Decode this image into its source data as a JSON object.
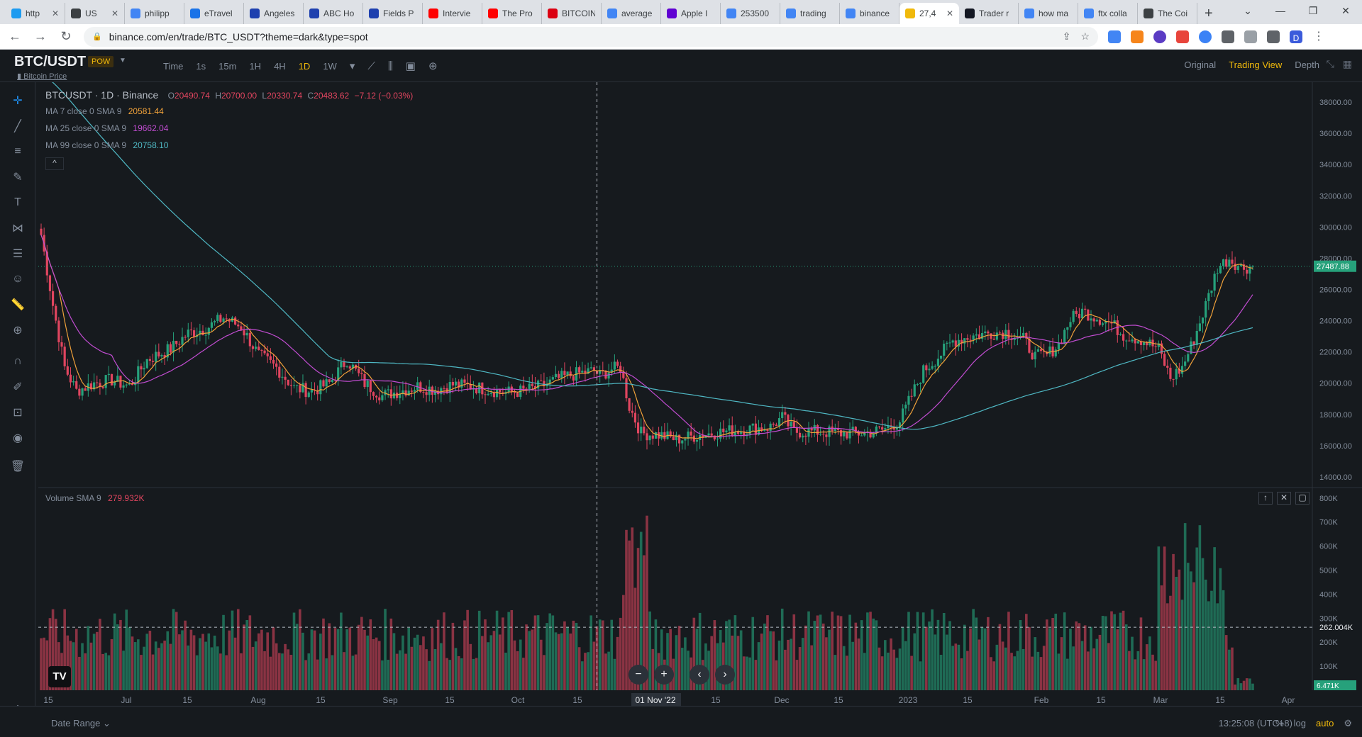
{
  "browser": {
    "tabs": [
      {
        "label": "http",
        "icon": "twitter-icon",
        "color": "#1d9bf0"
      },
      {
        "label": "US",
        "icon": "globe-icon",
        "color": "#3c4043"
      },
      {
        "label": "philipp",
        "icon": "google-icon",
        "color": "#4285f4"
      },
      {
        "label": "eTravel",
        "icon": "plane-icon",
        "color": "#1a73e8"
      },
      {
        "label": "Angeles",
        "icon": "t-icon",
        "color": "#1e40af"
      },
      {
        "label": "ABC Ho",
        "icon": "t-icon",
        "color": "#1e40af"
      },
      {
        "label": "Fields P",
        "icon": "t-icon",
        "color": "#1e40af"
      },
      {
        "label": "Intervie",
        "icon": "youtube-icon",
        "color": "#ff0000"
      },
      {
        "label": "The Pro",
        "icon": "youtube-icon",
        "color": "#ff0000"
      },
      {
        "label": "BITCOIN",
        "icon": "hsbc-icon",
        "color": "#db0011"
      },
      {
        "label": "average",
        "icon": "google-icon",
        "color": "#4285f4"
      },
      {
        "label": "Apple I",
        "icon": "yahoo-icon",
        "color": "#6001d2"
      },
      {
        "label": "253500",
        "icon": "google-icon",
        "color": "#4285f4"
      },
      {
        "label": "trading",
        "icon": "google-icon",
        "color": "#4285f4"
      },
      {
        "label": "binance",
        "icon": "google-icon",
        "color": "#4285f4"
      },
      {
        "label": "27,4",
        "icon": "binance-icon",
        "color": "#f0b90b",
        "active": true
      },
      {
        "label": "Trader r",
        "icon": "tradingview-icon",
        "color": "#131722"
      },
      {
        "label": "how ma",
        "icon": "google-icon",
        "color": "#4285f4"
      },
      {
        "label": "ftx colla",
        "icon": "google-icon",
        "color": "#4285f4"
      },
      {
        "label": "The Coi",
        "icon": "coin-icon",
        "color": "#3c4043"
      }
    ],
    "url": "binance.com/en/trade/BTC_USDT?theme=dark&type=spot",
    "profile_initial": "D"
  },
  "header": {
    "pair": "BTC/USDT",
    "badge": "POW",
    "sub_link": "Bitcoin Price",
    "intervals": [
      "Time",
      "1s",
      "15m",
      "1H",
      "4H",
      "1D",
      "1W"
    ],
    "active_interval": "1D",
    "views": [
      "Original",
      "Trading View",
      "Depth"
    ],
    "active_view": "Trading View"
  },
  "legend": {
    "symbol_line": "BTCUSDT · 1D · Binance",
    "open_label": "O",
    "open": "20490.74",
    "high_label": "H",
    "high": "20700.00",
    "low_label": "L",
    "low": "20330.74",
    "close_label": "C",
    "close": "20483.62",
    "change": "−7.12 (−0.03%)",
    "ma7_label": "MA 7 close 0 SMA 9",
    "ma7_value": "20581.44",
    "ma25_label": "MA 25 close 0 SMA 9",
    "ma25_value": "19662.04",
    "ma99_label": "MA 99 close 0 SMA 9",
    "ma99_value": "20758.10",
    "volume_label": "Volume SMA 9",
    "volume_value": "279.932K"
  },
  "chart_data": {
    "type": "candlestick",
    "price_axis": {
      "ticks": [
        "38000.00",
        "36000.00",
        "34000.00",
        "32000.00",
        "30000.00",
        "28000.00",
        "26000.00",
        "24000.00",
        "22000.00",
        "20000.00",
        "18000.00",
        "16000.00",
        "14000.00"
      ],
      "min": 13500,
      "max": 39000
    },
    "last_price": "27487.88",
    "volume_axis": {
      "ticks": [
        "800K",
        "700K",
        "600K",
        "500K",
        "400K",
        "300K",
        "200K",
        "100K"
      ],
      "max": 820000
    },
    "volume_crosshair": "262.004K",
    "volume_last": "6.471K",
    "time_ticks": [
      "15",
      "Jul",
      "15",
      "Aug",
      "15",
      "Sep",
      "15",
      "Oct",
      "15",
      "01 Nov '22",
      "15",
      "Dec",
      "15",
      "2023",
      "15",
      "Feb",
      "15",
      "Mar",
      "15",
      "Apr"
    ],
    "crosshair_date": "01 Nov '22",
    "price_anchors": [
      [
        0,
        29500
      ],
      [
        4,
        25000
      ],
      [
        8,
        21000
      ],
      [
        12,
        19500
      ],
      [
        18,
        20000
      ],
      [
        24,
        20200
      ],
      [
        30,
        19800
      ],
      [
        36,
        21500
      ],
      [
        44,
        22200
      ],
      [
        50,
        23200
      ],
      [
        56,
        23500
      ],
      [
        62,
        24200
      ],
      [
        68,
        23600
      ],
      [
        74,
        21800
      ],
      [
        80,
        21000
      ],
      [
        86,
        19700
      ],
      [
        92,
        19500
      ],
      [
        98,
        20000
      ],
      [
        104,
        21500
      ],
      [
        110,
        20000
      ],
      [
        116,
        19200
      ],
      [
        122,
        19500
      ],
      [
        128,
        19800
      ],
      [
        134,
        19600
      ],
      [
        140,
        19900
      ],
      [
        146,
        19800
      ],
      [
        152,
        19600
      ],
      [
        158,
        19400
      ],
      [
        164,
        19500
      ],
      [
        170,
        19800
      ],
      [
        176,
        20300
      ],
      [
        182,
        20600
      ],
      [
        188,
        20800
      ],
      [
        190,
        20500
      ],
      [
        194,
        20900
      ],
      [
        197,
        21000
      ],
      [
        200,
        18500
      ],
      [
        204,
        16800
      ],
      [
        210,
        16700
      ],
      [
        216,
        16400
      ],
      [
        224,
        16700
      ],
      [
        232,
        16900
      ],
      [
        242,
        17100
      ],
      [
        248,
        17200
      ],
      [
        252,
        17800
      ],
      [
        256,
        16900
      ],
      [
        264,
        16900
      ],
      [
        272,
        16800
      ],
      [
        280,
        16800
      ],
      [
        286,
        17000
      ],
      [
        292,
        17600
      ],
      [
        296,
        19200
      ],
      [
        300,
        20800
      ],
      [
        304,
        21500
      ],
      [
        310,
        22700
      ],
      [
        316,
        23000
      ],
      [
        322,
        23200
      ],
      [
        328,
        23300
      ],
      [
        334,
        22800
      ],
      [
        338,
        21700
      ],
      [
        342,
        21800
      ],
      [
        346,
        22500
      ],
      [
        350,
        24100
      ],
      [
        354,
        24600
      ],
      [
        358,
        24300
      ],
      [
        364,
        23800
      ],
      [
        368,
        23100
      ],
      [
        374,
        22800
      ],
      [
        380,
        22200
      ],
      [
        384,
        20300
      ],
      [
        388,
        21000
      ],
      [
        392,
        22800
      ],
      [
        396,
        25000
      ],
      [
        400,
        27400
      ],
      [
        404,
        28000
      ],
      [
        408,
        27400
      ],
      [
        412,
        27480
      ]
    ],
    "ma7_color": "#f0a13a",
    "ma25_color": "#c14cd1",
    "ma99_color": "#4fb8c4",
    "up_color": "#26a17b",
    "down_color": "#e0455f"
  },
  "footer": {
    "date_range": "Date Range",
    "clock": "13:25:08 (UTC+8)",
    "scale_opts": [
      "%",
      "log",
      "auto"
    ],
    "active_scale": "auto"
  }
}
